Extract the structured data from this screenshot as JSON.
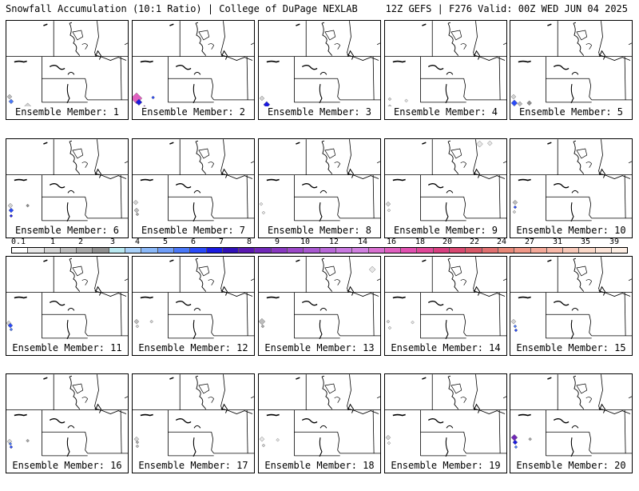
{
  "header": {
    "left_text": "Snowfall Accumulation (10:1 Ratio) | College of DuPage NEXLAB",
    "right_text": "12Z GEFS | F276 Valid: 00Z WED JUN 04 2025"
  },
  "colorbar": {
    "labels": [
      "0.1",
      "1",
      "2",
      "3",
      "4",
      "5",
      "6",
      "7",
      "8",
      "9",
      "10",
      "12",
      "14",
      "16",
      "18",
      "20",
      "22",
      "24",
      "27",
      "31",
      "35",
      "39"
    ],
    "colors": [
      "#ffffff",
      "#e8e8e8",
      "#d4d4d4",
      "#bdbdbd",
      "#a8a8a8",
      "#8f8f8f",
      "#b8e8f0",
      "#a8d0f8",
      "#8ab8f8",
      "#6f9df8",
      "#4a78f8",
      "#2a4af8",
      "#1a1ae0",
      "#3010b8",
      "#5a18b0",
      "#7028b8",
      "#8838c0",
      "#9b48c8",
      "#a858d0",
      "#b868d8",
      "#c878e0",
      "#d080e0",
      "#d870d0",
      "#e060c0",
      "#e050b0",
      "#e04898",
      "#d84080",
      "#d84870",
      "#d85868",
      "#e07070",
      "#e88878",
      "#f09888",
      "#f4a898",
      "#f8b8a8",
      "#f8c8b8",
      "#fad8c8",
      "#fce4d8",
      "#fdeee4"
    ]
  },
  "panels": [
    {
      "label": "Ensemble Member: 1",
      "snow": [
        {
          "x": 6,
          "y": 102,
          "c": "#4a78f8",
          "r": 3
        },
        {
          "x": 4,
          "y": 96,
          "c": "#bdbdbd",
          "r": 3
        },
        {
          "x": 6,
          "y": 116,
          "c": "#4a78f8",
          "r": 2
        },
        {
          "x": 27,
          "y": 108,
          "c": "#d4d4d4",
          "r": 4
        }
      ]
    },
    {
      "label": "Ensemble Member: 2",
      "snow": [
        {
          "x": 5,
          "y": 98,
          "c": "#e060c0",
          "r": 7
        },
        {
          "x": 8,
          "y": 103,
          "c": "#1a1ae0",
          "r": 4
        },
        {
          "x": 15,
          "y": 110,
          "c": "#7028b8",
          "r": 3
        },
        {
          "x": 22,
          "y": 122,
          "c": "#a8d0f8",
          "r": 3
        },
        {
          "x": 26,
          "y": 97,
          "c": "#2a4af8",
          "r": 2
        }
      ]
    },
    {
      "label": "Ensemble Member: 3",
      "snow": [
        {
          "x": 10,
          "y": 106,
          "c": "#1a1ae0",
          "r": 4
        },
        {
          "x": 6,
          "y": 112,
          "c": "#a8a8a8",
          "r": 3
        },
        {
          "x": 4,
          "y": 98,
          "c": "#d4d4d4",
          "r": 3
        },
        {
          "x": 12,
          "y": 117,
          "c": "#4a78f8",
          "r": 2
        }
      ]
    },
    {
      "label": "Ensemble Member: 4",
      "snow": [
        {
          "x": 6,
          "y": 99,
          "c": "#d4d4d4",
          "r": 2
        },
        {
          "x": 6,
          "y": 109,
          "c": "#bdbdbd",
          "r": 3
        },
        {
          "x": 6,
          "y": 120,
          "c": "#a8a8a8",
          "r": 2
        },
        {
          "x": 27,
          "y": 101,
          "c": "#e8e8e8",
          "r": 2
        }
      ]
    },
    {
      "label": "Ensemble Member: 5",
      "snow": [
        {
          "x": 5,
          "y": 104,
          "c": "#2a4af8",
          "r": 4
        },
        {
          "x": 4,
          "y": 96,
          "c": "#d4d4d4",
          "r": 3
        },
        {
          "x": 12,
          "y": 105,
          "c": "#bdbdbd",
          "r": 3
        },
        {
          "x": 24,
          "y": 104,
          "c": "#8f8f8f",
          "r": 3
        },
        {
          "x": 7,
          "y": 117,
          "c": "#4a78f8",
          "r": 2
        }
      ]
    },
    {
      "label": "Ensemble Member: 6",
      "snow": [
        {
          "x": 5,
          "y": 84,
          "c": "#d4d4d4",
          "r": 3
        },
        {
          "x": 6,
          "y": 90,
          "c": "#2a4af8",
          "r": 3
        },
        {
          "x": 6,
          "y": 97,
          "c": "#1a1ae0",
          "r": 2
        },
        {
          "x": 27,
          "y": 84,
          "c": "#8f8f8f",
          "r": 2
        }
      ]
    },
    {
      "label": "Ensemble Member: 7",
      "snow": [
        {
          "x": 4,
          "y": 80,
          "c": "#d4d4d4",
          "r": 3
        },
        {
          "x": 5,
          "y": 90,
          "c": "#bdbdbd",
          "r": 3
        },
        {
          "x": 6,
          "y": 95,
          "c": "#a8a8a8",
          "r": 2
        }
      ]
    },
    {
      "label": "Ensemble Member: 8",
      "snow": [
        {
          "x": 3,
          "y": 82,
          "c": "#e8e8e8",
          "r": 2
        },
        {
          "x": 6,
          "y": 93,
          "c": "#e8e8e8",
          "r": 2
        }
      ]
    },
    {
      "label": "Ensemble Member: 9",
      "snow": [
        {
          "x": 4,
          "y": 82,
          "c": "#d4d4d4",
          "r": 3
        },
        {
          "x": 5,
          "y": 90,
          "c": "#e8e8e8",
          "r": 2
        },
        {
          "x": 120,
          "y": 6,
          "c": "#e8e8e8",
          "r": 4
        },
        {
          "x": 133,
          "y": 5,
          "c": "#e8e8e8",
          "r": 3
        }
      ]
    },
    {
      "label": "Ensemble Member: 10",
      "snow": [
        {
          "x": 6,
          "y": 80,
          "c": "#bdbdbd",
          "r": 3
        },
        {
          "x": 6,
          "y": 86,
          "c": "#2a4af8",
          "r": 2
        },
        {
          "x": 5,
          "y": 92,
          "c": "#d4d4d4",
          "r": 2
        }
      ]
    },
    {
      "label": "Ensemble Member: 11",
      "snow": [
        {
          "x": 3,
          "y": 84,
          "c": "#d4d4d4",
          "r": 3
        },
        {
          "x": 5,
          "y": 87,
          "c": "#2a4af8",
          "r": 3
        },
        {
          "x": 6,
          "y": 92,
          "c": "#4a78f8",
          "r": 2
        }
      ]
    },
    {
      "label": "Ensemble Member: 12",
      "snow": [
        {
          "x": 5,
          "y": 82,
          "c": "#bdbdbd",
          "r": 3
        },
        {
          "x": 6,
          "y": 88,
          "c": "#d4d4d4",
          "r": 2
        },
        {
          "x": 24,
          "y": 82,
          "c": "#d4d4d4",
          "r": 2
        }
      ]
    },
    {
      "label": "Ensemble Member: 13",
      "snow": [
        {
          "x": 4,
          "y": 82,
          "c": "#bdbdbd",
          "r": 4
        },
        {
          "x": 5,
          "y": 88,
          "c": "#a8a8a8",
          "r": 2
        },
        {
          "x": 144,
          "y": 16,
          "c": "#e8e8e8",
          "r": 4
        }
      ]
    },
    {
      "label": "Ensemble Member: 14",
      "snow": [
        {
          "x": 4,
          "y": 82,
          "c": "#d4d4d4",
          "r": 2
        },
        {
          "x": 6,
          "y": 90,
          "c": "#e8e8e8",
          "r": 2
        },
        {
          "x": 35,
          "y": 83,
          "c": "#e8e8e8",
          "r": 2
        }
      ]
    },
    {
      "label": "Ensemble Member: 15",
      "snow": [
        {
          "x": 4,
          "y": 82,
          "c": "#d4d4d4",
          "r": 3
        },
        {
          "x": 6,
          "y": 88,
          "c": "#4a78f8",
          "r": 2
        },
        {
          "x": 7,
          "y": 93,
          "c": "#2a4af8",
          "r": 2
        }
      ]
    },
    {
      "label": "Ensemble Member: 16",
      "snow": [
        {
          "x": 4,
          "y": 85,
          "c": "#d4d4d4",
          "r": 3
        },
        {
          "x": 5,
          "y": 88,
          "c": "#4a78f8",
          "r": 2
        },
        {
          "x": 6,
          "y": 92,
          "c": "#2a4af8",
          "r": 2
        },
        {
          "x": 27,
          "y": 84,
          "c": "#a8a8a8",
          "r": 2
        }
      ]
    },
    {
      "label": "Ensemble Member: 17",
      "snow": [
        {
          "x": 5,
          "y": 82,
          "c": "#d4d4d4",
          "r": 3
        },
        {
          "x": 6,
          "y": 86,
          "c": "#a8a8a8",
          "r": 2
        },
        {
          "x": 6,
          "y": 91,
          "c": "#bdbdbd",
          "r": 2
        }
      ]
    },
    {
      "label": "Ensemble Member: 18",
      "snow": [
        {
          "x": 4,
          "y": 82,
          "c": "#e8e8e8",
          "r": 3
        },
        {
          "x": 6,
          "y": 90,
          "c": "#d4d4d4",
          "r": 2
        },
        {
          "x": 24,
          "y": 83,
          "c": "#e8e8e8",
          "r": 2
        }
      ]
    },
    {
      "label": "Ensemble Member: 19",
      "snow": [
        {
          "x": 4,
          "y": 80,
          "c": "#d4d4d4",
          "r": 3
        },
        {
          "x": 5,
          "y": 87,
          "c": "#e8e8e8",
          "r": 2
        }
      ]
    },
    {
      "label": "Ensemble Member: 20",
      "snow": [
        {
          "x": 5,
          "y": 80,
          "c": "#7028b8",
          "r": 4
        },
        {
          "x": 6,
          "y": 86,
          "c": "#1a1ae0",
          "r": 3
        },
        {
          "x": 7,
          "y": 92,
          "c": "#4a78f8",
          "r": 2
        },
        {
          "x": 25,
          "y": 82,
          "c": "#a8a8a8",
          "r": 2
        }
      ]
    }
  ]
}
